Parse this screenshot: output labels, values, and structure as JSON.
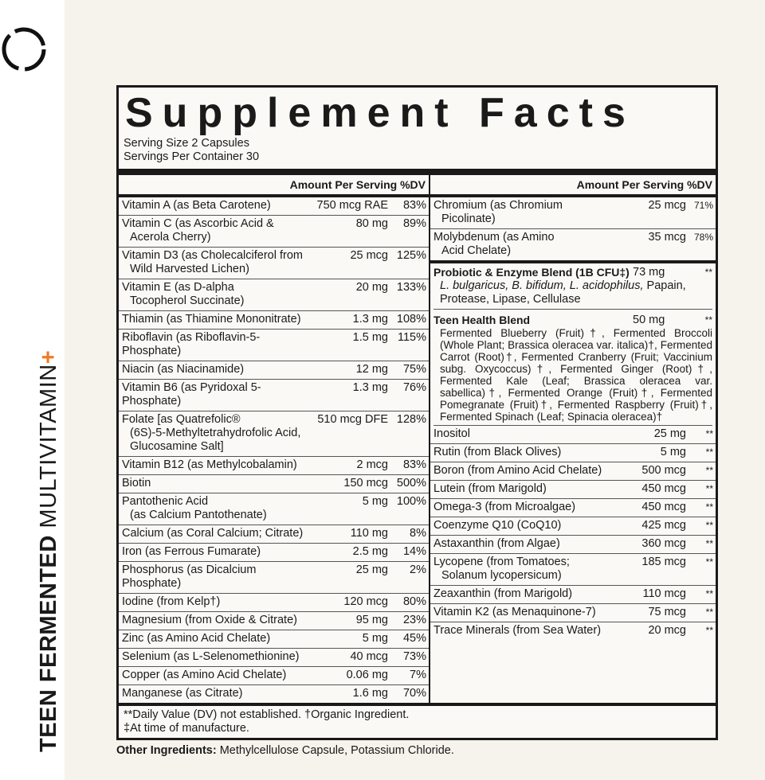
{
  "brand": {
    "logo_icon": "broken-circle-icon",
    "vertical_bold": "TEEN FERMENTED",
    "vertical_thin": "MULTIVITAMIN",
    "vertical_plus": "+",
    "accent": "#f07a22"
  },
  "title": "Supplement Facts",
  "serving_size": "Serving Size 2 Capsules",
  "servings_per_container": "Servings Per Container 30",
  "header": "Amount Per Serving %DV",
  "left_rows": [
    {
      "n": "Vitamin A (as Beta Carotene)",
      "n2": "",
      "a": "750 mcg RAE",
      "d": "83%"
    },
    {
      "n": "Vitamin C (as Ascorbic Acid &",
      "n2": "Acerola Cherry)",
      "a": "80 mg",
      "d": "89%"
    },
    {
      "n": "Vitamin D3 (as Cholecalciferol from",
      "n2": "Wild Harvested Lichen)",
      "a": "25 mcg",
      "d": "125%"
    },
    {
      "n": "Vitamin E (as D-alpha",
      "n2": "Tocopherol Succinate)",
      "a": "20 mg",
      "d": "133%"
    },
    {
      "n": "Thiamin (as Thiamine Mononitrate)",
      "n2": "",
      "a": "1.3 mg",
      "d": "108%"
    },
    {
      "n": "Riboflavin (as Riboflavin-5-Phosphate)",
      "n2": "",
      "a": "1.5 mg",
      "d": "115%"
    },
    {
      "n": "Niacin (as Niacinamide)",
      "n2": "",
      "a": "12 mg",
      "d": "75%"
    },
    {
      "n": "Vitamin B6 (as Pyridoxal 5-Phosphate)",
      "n2": "",
      "a": "1.3 mg",
      "d": "76%"
    },
    {
      "n": "Folate [as Quatrefolic®",
      "n2": "(6S)-5-Methyltetrahydrofolic Acid, Glucosamine Salt]",
      "a": "510 mcg DFE",
      "d": "128%"
    },
    {
      "n": "Vitamin B12 (as Methylcobalamin)",
      "n2": "",
      "a": "2 mcg",
      "d": "83%"
    },
    {
      "n": "Biotin",
      "n2": "",
      "a": "150 mcg",
      "d": "500%"
    },
    {
      "n": "Pantothenic Acid",
      "n2": "(as Calcium Pantothenate)",
      "a": "5 mg",
      "d": "100%"
    },
    {
      "n": "Calcium (as Coral Calcium; Citrate)",
      "n2": "",
      "a": "110 mg",
      "d": "8%"
    },
    {
      "n": "Iron (as Ferrous Fumarate)",
      "n2": "",
      "a": "2.5 mg",
      "d": "14%"
    },
    {
      "n": "Phosphorus (as Dicalcium Phosphate)",
      "n2": "",
      "a": "25 mg",
      "d": "2%"
    },
    {
      "n": "Iodine (from Kelp†)",
      "n2": "",
      "a": "120 mcg",
      "d": "80%"
    },
    {
      "n": "Magnesium (from Oxide & Citrate)",
      "n2": "",
      "a": "95 mg",
      "d": "23%"
    },
    {
      "n": "Zinc (as Amino Acid Chelate)",
      "n2": "",
      "a": "5 mg",
      "d": "45%"
    },
    {
      "n": "Selenium (as L-Selenomethionine)",
      "n2": "",
      "a": "40 mcg",
      "d": "73%"
    },
    {
      "n": "Copper (as Amino Acid Chelate)",
      "n2": "",
      "a": "0.06 mg",
      "d": "7%"
    },
    {
      "n": "Manganese (as Citrate)",
      "n2": "",
      "a": "1.6 mg",
      "d": "70%"
    }
  ],
  "right_top": [
    {
      "n": "Chromium (as Chromium",
      "n2": "Picolinate)",
      "a": "25 mcg",
      "d": "71%"
    },
    {
      "n": "Molybdenum (as Amino",
      "n2": "Acid Chelate)",
      "a": "35 mcg",
      "d": "78%"
    }
  ],
  "probiotic": {
    "name": "Probiotic & Enzyme Blend (1B CFU‡)",
    "a": "73 mg",
    "d": "**",
    "text_italic": "L. bulgaricus, B. bifidum, L. acidophilus,",
    "text": " Papain, Protease, Lipase, Cellulase"
  },
  "teen_blend": {
    "name": "Teen Health Blend",
    "a": "50 mg",
    "d": "**",
    "text": "Fermented Blueberry (Fruit)†, Fermented Broccoli (Whole Plant; Brassica oleracea var. italica)†, Fermented Carrot (Root)†, Fermented Cranberry (Fruit; Vaccinium subg. Oxycoccus)†, Fermented Ginger (Root)†, Fermented Kale (Leaf; Brassica oleracea var. sabellica)†, Fermented Orange (Fruit)†, Fermented Pomegranate (Fruit)†, Fermented Raspberry (Fruit)†, Fermented Spinach (Leaf; Spinacia oleracea)†"
  },
  "right_rows": [
    {
      "n": "Inositol",
      "n2": "",
      "a": "25 mg",
      "d": "**"
    },
    {
      "n": "Rutin (from Black Olives)",
      "n2": "",
      "a": "5 mg",
      "d": "**"
    },
    {
      "n": "Boron (from Amino Acid Chelate)",
      "n2": "",
      "a": "500 mcg",
      "d": "**"
    },
    {
      "n": "Lutein (from Marigold)",
      "n2": "",
      "a": "450 mcg",
      "d": "**"
    },
    {
      "n": "Omega-3 (from Microalgae)",
      "n2": "",
      "a": "450 mcg",
      "d": "**"
    },
    {
      "n": "Coenzyme Q10 (CoQ10)",
      "n2": "",
      "a": "425 mcg",
      "d": "**"
    },
    {
      "n": "Astaxanthin (from Algae)",
      "n2": "",
      "a": "360 mcg",
      "d": "**"
    },
    {
      "n": "Lycopene (from Tomatoes;",
      "n2": "Solanum lycopersicum)",
      "a": "185 mcg",
      "d": "**"
    },
    {
      "n": "Zeaxanthin (from Marigold)",
      "n2": "",
      "a": "110 mcg",
      "d": "**"
    },
    {
      "n": "Vitamin K2 (as Menaquinone-7)",
      "n2": "",
      "a": "75 mcg",
      "d": "**"
    },
    {
      "n": "Trace Minerals (from Sea Water)",
      "n2": "",
      "a": "20 mcg",
      "d": "**"
    }
  ],
  "footnote1": "**Daily Value (DV) not established. †Organic Ingredient.",
  "footnote2": "‡At time of manufacture.",
  "other_label": "Other Ingredients:",
  "other_text": " Methylcellulose Capsule, Potassium Chloride."
}
